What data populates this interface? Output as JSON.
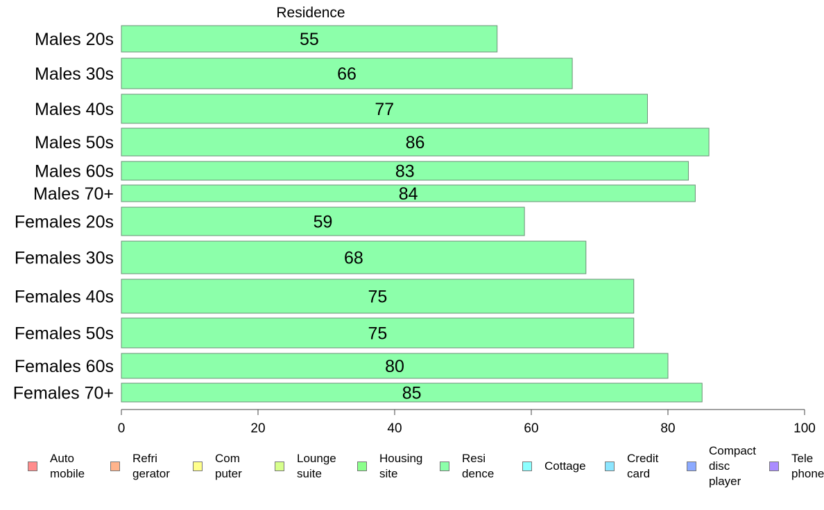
{
  "chart_data": {
    "type": "bar",
    "orientation": "horizontal",
    "title": "Residence",
    "categories": [
      "Males 20s",
      "Males 30s",
      "Males 40s",
      "Males 50s",
      "Males 60s",
      "Males 70+",
      "Females 20s",
      "Females 30s",
      "Females 40s",
      "Females 50s",
      "Females 60s",
      "Females 70+"
    ],
    "values": [
      55,
      66,
      77,
      86,
      83,
      84,
      59,
      68,
      75,
      75,
      80,
      85
    ],
    "data_labels": [
      "55",
      "66",
      "77",
      "86",
      "83",
      "84",
      "59",
      "68",
      "75",
      "75",
      "80",
      "85"
    ],
    "bar_color": "#8cffaa",
    "xlim": [
      0,
      100
    ],
    "xticks": [
      0,
      20,
      40,
      60,
      80,
      100
    ],
    "xtick_labels": [
      "0",
      "20",
      "40",
      "60",
      "80",
      "100"
    ],
    "grid": false,
    "legend_position": "bottom",
    "legend": [
      {
        "label": "Auto\nmobile",
        "color": "#ff8c8c"
      },
      {
        "label": "Refri\ngerator",
        "color": "#ffb48c"
      },
      {
        "label": "Com\nputer",
        "color": "#ffff8c"
      },
      {
        "label": "Lounge\nsuite",
        "color": "#d7ff8c"
      },
      {
        "label": "Housing\nsite",
        "color": "#8cff8c"
      },
      {
        "label": "Resi\ndence",
        "color": "#8cffaa"
      },
      {
        "label": "Cottage",
        "color": "#8cffff"
      },
      {
        "label": "Credit\ncard",
        "color": "#8ce6ff"
      },
      {
        "label": "Compact\ndisc\nplayer",
        "color": "#8caaff"
      },
      {
        "label": "Tele\nphone",
        "color": "#aa8cff"
      }
    ]
  }
}
